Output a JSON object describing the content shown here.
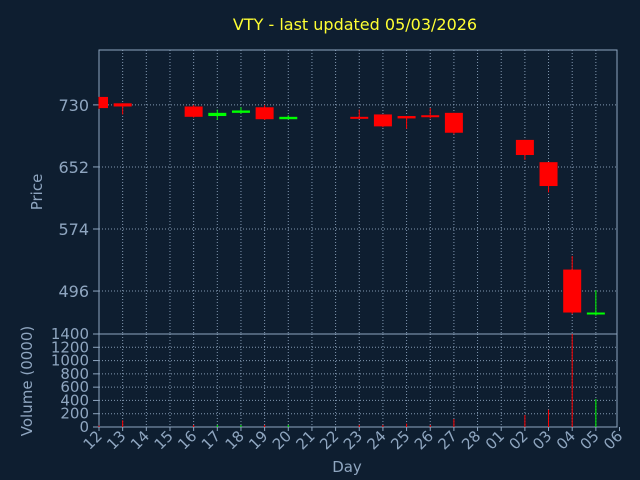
{
  "chart_data": {
    "type": "candlestick",
    "title": "VTY - last updated 05/03/2026",
    "price_panel": {
      "ylabel": "Price",
      "yticks": [
        496,
        574,
        652,
        730
      ],
      "ylim": [
        442,
        799
      ]
    },
    "volume_panel": {
      "ylabel": "Volume (0000)",
      "yticks": [
        0,
        200,
        400,
        600,
        800,
        1000,
        1200,
        1400
      ],
      "ylim": [
        0,
        1400
      ]
    },
    "xlabel": "Day",
    "x_ticks": [
      "12",
      "13",
      "14",
      "15",
      "16",
      "17",
      "18",
      "19",
      "20",
      "21",
      "22",
      "23",
      "24",
      "25",
      "26",
      "27",
      "28",
      "01",
      "02",
      "03",
      "04",
      "05",
      "06"
    ],
    "grid": true,
    "colors": {
      "up": "#00ff00",
      "down": "#ff0000",
      "title": "#ffff33",
      "axis": "#8fa6c0",
      "background": "#0e1e30"
    },
    "candles": [
      {
        "day": "12",
        "open": 740,
        "high": 740,
        "low": 725,
        "close": 726,
        "volume": 20
      },
      {
        "day": "13",
        "open": 732,
        "high": 732,
        "low": 718,
        "close": 728,
        "volume": 100
      },
      {
        "day": "16",
        "open": 728,
        "high": 730,
        "low": 714,
        "close": 715,
        "volume": 30
      },
      {
        "day": "17",
        "open": 716,
        "high": 724,
        "low": 711,
        "close": 720,
        "volume": 30
      },
      {
        "day": "18",
        "open": 720,
        "high": 727,
        "low": 719,
        "close": 723,
        "volume": 30
      },
      {
        "day": "19",
        "open": 727,
        "high": 730,
        "low": 711,
        "close": 712,
        "volume": 30
      },
      {
        "day": "20",
        "open": 712,
        "high": 717,
        "low": 712,
        "close": 715,
        "volume": 30
      },
      {
        "day": "23",
        "open": 715,
        "high": 724,
        "low": 713,
        "close": 714,
        "volume": 30
      },
      {
        "day": "24",
        "open": 718,
        "high": 718,
        "low": 702,
        "close": 703,
        "volume": 30
      },
      {
        "day": "25",
        "open": 716,
        "high": 716,
        "low": 700,
        "close": 713,
        "volume": 50
      },
      {
        "day": "26",
        "open": 717,
        "high": 726,
        "low": 713,
        "close": 715,
        "volume": 30
      },
      {
        "day": "27",
        "open": 720,
        "high": 720,
        "low": 693,
        "close": 695,
        "volume": 120
      },
      {
        "day": "02",
        "open": 686,
        "high": 686,
        "low": 661,
        "close": 667,
        "volume": 180
      },
      {
        "day": "03",
        "open": 658,
        "high": 658,
        "low": 620,
        "close": 628,
        "volume": 260
      },
      {
        "day": "04",
        "open": 523,
        "high": 540,
        "low": 467,
        "close": 469,
        "volume": 1400
      },
      {
        "day": "05",
        "open": 468,
        "high": 497,
        "low": 465,
        "close": 469,
        "volume": 420
      }
    ]
  }
}
